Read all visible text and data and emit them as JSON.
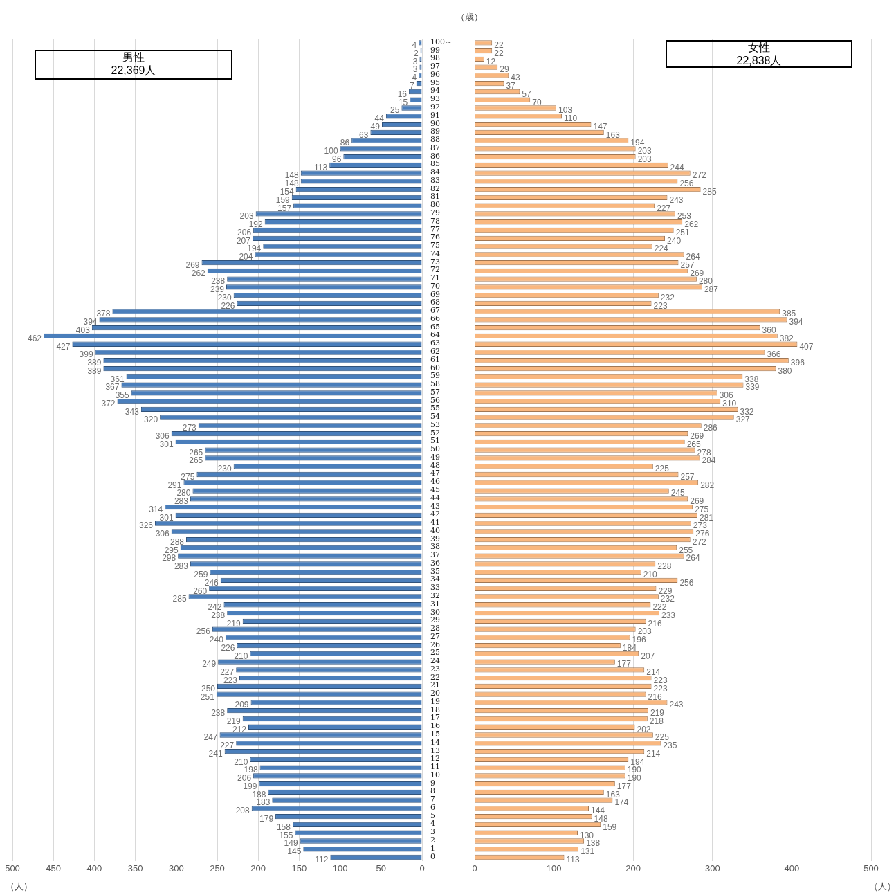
{
  "chart_data": [
    {
      "type": "bar",
      "orientation": "horizontal",
      "title": "男性",
      "subtitle": "22,369人",
      "xlabel": "（人）",
      "ylabel": "（歳）",
      "xlim": [
        500,
        0
      ],
      "xticks": [
        0,
        50,
        100,
        150,
        200,
        250,
        300,
        350,
        400,
        450,
        500
      ],
      "grid": "x",
      "data_labels": true,
      "categories": [
        "100～",
        "99",
        "98",
        "97",
        "96",
        "95",
        "94",
        "93",
        "92",
        "91",
        "90",
        "89",
        "88",
        "87",
        "86",
        "85",
        "84",
        "83",
        "82",
        "81",
        "80",
        "79",
        "78",
        "77",
        "76",
        "75",
        "74",
        "73",
        "72",
        "71",
        "70",
        "69",
        "68",
        "67",
        "66",
        "65",
        "64",
        "63",
        "62",
        "61",
        "60",
        "59",
        "58",
        "57",
        "56",
        "55",
        "54",
        "53",
        "52",
        "51",
        "50",
        "49",
        "48",
        "47",
        "46",
        "45",
        "44",
        "43",
        "42",
        "41",
        "40",
        "39",
        "38",
        "37",
        "36",
        "35",
        "34",
        "33",
        "32",
        "31",
        "30",
        "29",
        "28",
        "27",
        "26",
        "25",
        "24",
        "23",
        "22",
        "21",
        "20",
        "19",
        "18",
        "17",
        "16",
        "15",
        "14",
        "13",
        "12",
        "11",
        "10",
        "9",
        "8",
        "7",
        "6",
        "5",
        "4",
        "3",
        "2",
        "1",
        "0"
      ],
      "series": [
        {
          "color": "#4a7ebb",
          "values": [
            4,
            2,
            3,
            3,
            4,
            7,
            16,
            15,
            25,
            44,
            49,
            63,
            86,
            100,
            96,
            113,
            148,
            148,
            154,
            159,
            157,
            203,
            192,
            206,
            207,
            194,
            204,
            269,
            262,
            238,
            239,
            230,
            226,
            378,
            394,
            403,
            462,
            427,
            399,
            389,
            389,
            361,
            367,
            355,
            372,
            343,
            320,
            273,
            306,
            301,
            265,
            265,
            230,
            275,
            291,
            280,
            283,
            314,
            301,
            326,
            306,
            288,
            295,
            298,
            283,
            259,
            246,
            260,
            285,
            242,
            238,
            219,
            256,
            240,
            226,
            210,
            249,
            227,
            223,
            250,
            251,
            209,
            238,
            219,
            212,
            247,
            227,
            241,
            210,
            198,
            206,
            199,
            188,
            183,
            208,
            179,
            158,
            155,
            149,
            145,
            112
          ]
        }
      ]
    },
    {
      "type": "bar",
      "orientation": "horizontal",
      "title": "女性",
      "subtitle": "22,838人",
      "xlabel": "（人）",
      "xlim": [
        0,
        500
      ],
      "xticks": [
        0,
        100,
        200,
        300,
        400,
        500
      ],
      "grid": "x",
      "data_labels": true,
      "tick_labels": "x",
      "categories": [
        null,
        null,
        null,
        null,
        null,
        null,
        null,
        null,
        null,
        null,
        null,
        null,
        null,
        null,
        null,
        null,
        null,
        null,
        null,
        null,
        null,
        null,
        null,
        null,
        null,
        null,
        null,
        null,
        null,
        null,
        null,
        null,
        null,
        null,
        null,
        null,
        null,
        null,
        null,
        null,
        null,
        null,
        null,
        null,
        null,
        null,
        null,
        null,
        null,
        null,
        null,
        null,
        null,
        null,
        null,
        null,
        null,
        null,
        null,
        null,
        null,
        null,
        null,
        null,
        null,
        null,
        null,
        null,
        null,
        null,
        null,
        null,
        null,
        null,
        null,
        null,
        null,
        null,
        null,
        null,
        null,
        null,
        null,
        null,
        null,
        null,
        null,
        null,
        null,
        null,
        null,
        null,
        null,
        null,
        null,
        null,
        null,
        null,
        null,
        null,
        null
      ],
      "series": [
        {
          "color": "#f9b77f",
          "values": [
            22,
            22,
            12,
            29,
            43,
            37,
            57,
            70,
            103,
            110,
            147,
            163,
            194,
            203,
            203,
            244,
            272,
            256,
            285,
            243,
            227,
            253,
            262,
            251,
            240,
            224,
            264,
            257,
            269,
            280,
            287,
            232,
            223,
            385,
            394,
            360,
            382,
            407,
            366,
            396,
            380,
            338,
            339,
            306,
            310,
            332,
            327,
            286,
            269,
            265,
            278,
            284,
            225,
            257,
            282,
            245,
            269,
            275,
            281,
            273,
            276,
            272,
            255,
            264,
            228,
            210,
            256,
            229,
            232,
            222,
            233,
            216,
            203,
            196,
            184,
            207,
            177,
            214,
            223,
            223,
            216,
            243,
            219,
            218,
            202,
            225,
            235,
            214,
            194,
            190,
            190,
            177,
            163,
            174,
            144,
            148,
            159,
            130,
            138,
            131,
            113
          ]
        }
      ]
    }
  ]
}
